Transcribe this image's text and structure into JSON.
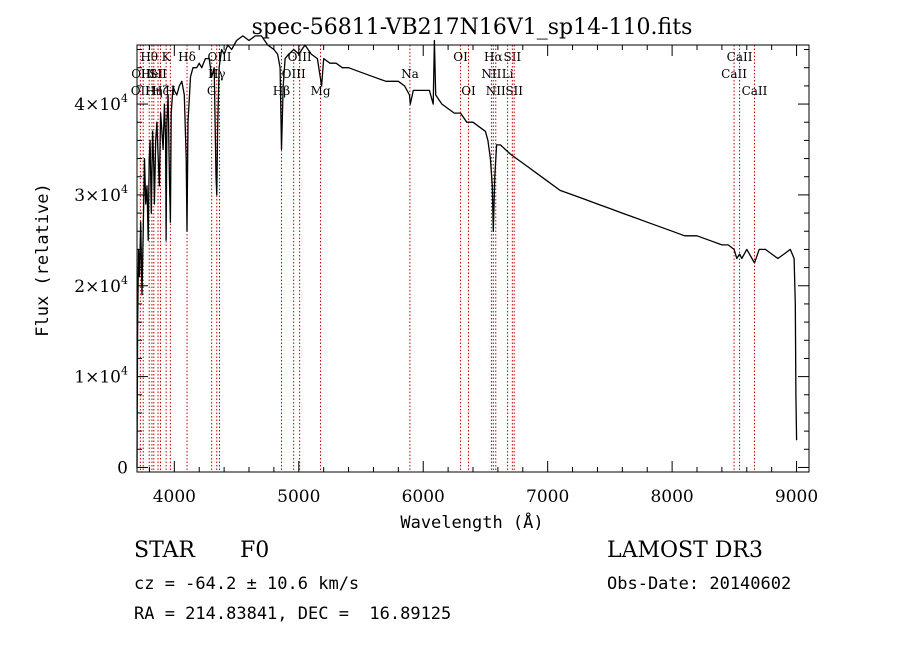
{
  "chart_data": {
    "type": "line",
    "title": "spec-56811-VB217N16V1_sp14-110.fits",
    "xlabel": "Wavelength (Å)",
    "ylabel": "Flux (relative)",
    "xlim": [
      3700,
      9100
    ],
    "ylim": [
      -500,
      46500
    ],
    "x_ticks": [
      4000,
      5000,
      6000,
      7000,
      8000,
      9000
    ],
    "y_ticks": [
      {
        "value": 0,
        "label": "0",
        "exp": ""
      },
      {
        "value": 10000,
        "label": "1×10",
        "exp": "4"
      },
      {
        "value": 20000,
        "label": "2×10",
        "exp": "4"
      },
      {
        "value": 30000,
        "label": "3×10",
        "exp": "4"
      },
      {
        "value": 40000,
        "label": "4×10",
        "exp": "4"
      }
    ],
    "series": [
      {
        "name": "spectrum",
        "x": [
          3700,
          3705,
          3712,
          3720,
          3730,
          3740,
          3750,
          3760,
          3770,
          3780,
          3790,
          3798,
          3805,
          3815,
          3825,
          3835,
          3840,
          3850,
          3860,
          3870,
          3880,
          3890,
          3900,
          3910,
          3920,
          3930,
          3934,
          3940,
          3950,
          3960,
          3968,
          3975,
          3990,
          4000,
          4020,
          4040,
          4060,
          4080,
          4095,
          4102,
          4110,
          4130,
          4150,
          4180,
          4200,
          4220,
          4250,
          4280,
          4300,
          4320,
          4335,
          4341,
          4348,
          4360,
          4380,
          4400,
          4430,
          4460,
          4500,
          4550,
          4600,
          4650,
          4700,
          4750,
          4800,
          4830,
          4850,
          4861,
          4875,
          4890,
          4920,
          4960,
          5000,
          5050,
          5100,
          5150,
          5172,
          5183,
          5200,
          5250,
          5300,
          5350,
          5400,
          5500,
          5600,
          5700,
          5800,
          5850,
          5890,
          5896,
          5920,
          5960,
          6000,
          6050,
          6080,
          6090,
          6100,
          6150,
          6200,
          6250,
          6300,
          6350,
          6400,
          6450,
          6500,
          6520,
          6540,
          6555,
          6563,
          6575,
          6590,
          6620,
          6660,
          6700,
          6750,
          6800,
          6850,
          6900,
          6950,
          7000,
          7100,
          7200,
          7300,
          7400,
          7500,
          7600,
          7700,
          7800,
          7900,
          8000,
          8100,
          8200,
          8300,
          8400,
          8450,
          8498,
          8520,
          8542,
          8560,
          8600,
          8662,
          8700,
          8750,
          8800,
          8850,
          8900,
          8950,
          8980,
          8990,
          8995,
          9000
        ],
        "values": [
          0,
          15000,
          24000,
          21000,
          27000,
          19000,
          26000,
          34000,
          29000,
          31000,
          25000,
          34000,
          36000,
          28000,
          37000,
          33000,
          29000,
          36000,
          38000,
          34000,
          31000,
          39000,
          37000,
          35000,
          40000,
          36000,
          25000,
          38000,
          41000,
          32000,
          27000,
          39000,
          42000,
          41500,
          41000,
          42000,
          42500,
          41000,
          34000,
          26000,
          38000,
          43000,
          44000,
          44000,
          44500,
          44000,
          45000,
          45000,
          43000,
          44000,
          32000,
          30000,
          37000,
          44000,
          46000,
          45500,
          46500,
          46000,
          47000,
          47500,
          47000,
          47500,
          47500,
          46500,
          46000,
          45500,
          44000,
          35000,
          42000,
          45000,
          45500,
          46000,
          45500,
          46500,
          45500,
          45000,
          43000,
          42000,
          45000,
          44500,
          44500,
          44000,
          44000,
          43500,
          43000,
          42500,
          42500,
          42000,
          41000,
          40000,
          41500,
          41500,
          41500,
          41500,
          40000,
          47000,
          41000,
          40000,
          39500,
          39000,
          39000,
          38000,
          38000,
          37500,
          37000,
          36000,
          34000,
          31000,
          26000,
          32000,
          35500,
          35500,
          35000,
          34500,
          34000,
          33500,
          33000,
          32500,
          32000,
          31500,
          30500,
          30000,
          29500,
          29000,
          28500,
          28000,
          27500,
          27000,
          26500,
          26000,
          25500,
          25500,
          25000,
          24500,
          24500,
          24000,
          23000,
          23500,
          23000,
          24000,
          22500,
          24000,
          24000,
          23500,
          23000,
          23500,
          24000,
          23000,
          18000,
          8000,
          3000
        ]
      }
    ],
    "line_markers": [
      {
        "wave": 3727,
        "label": "OII",
        "row": 3
      },
      {
        "wave": 3750,
        "label": "OIII",
        "row": 2
      },
      {
        "wave": 3798,
        "label": "Hθ",
        "row": 1
      },
      {
        "wave": 3820,
        "label": "HeI",
        "row": 2
      },
      {
        "wave": 3835,
        "label": "Hη",
        "row": 3
      },
      {
        "wave": 3869,
        "label": "SII",
        "row": 2
      },
      {
        "wave": 3889,
        "label": "Hζ",
        "row": 3
      },
      {
        "wave": 3934,
        "label": "K",
        "row": 1
      },
      {
        "wave": 3968,
        "label": "H",
        "row": 3
      },
      {
        "wave": 4102,
        "label": "Hδ",
        "row": 1
      },
      {
        "wave": 4300,
        "label": "G",
        "row": 3
      },
      {
        "wave": 4341,
        "label": "Hγ",
        "row": 2
      },
      {
        "wave": 4363,
        "label": "OIII",
        "row": 1
      },
      {
        "wave": 4861,
        "label": "Hβ",
        "row": 3
      },
      {
        "wave": 4959,
        "label": "OIII",
        "row": 2
      },
      {
        "wave": 5007,
        "label": "OIII",
        "row": 1
      },
      {
        "wave": 5175,
        "label": "Mg",
        "row": 3
      },
      {
        "wave": 5893,
        "label": "Na",
        "row": 2
      },
      {
        "wave": 6300,
        "label": "OI",
        "row": 1
      },
      {
        "wave": 6364,
        "label": "OI",
        "row": 3
      },
      {
        "wave": 6548,
        "label": "NII",
        "row": 2
      },
      {
        "wave": 6563,
        "label": "Hα",
        "row": 1
      },
      {
        "wave": 6583,
        "label": "NII",
        "row": 3
      },
      {
        "wave": 6678,
        "label": "Li",
        "row": 2
      },
      {
        "wave": 6716,
        "label": "SII",
        "row": 1
      },
      {
        "wave": 6731,
        "label": "SII",
        "row": 3
      },
      {
        "wave": 8498,
        "label": "CaII",
        "row": 2
      },
      {
        "wave": 8542,
        "label": "CaII",
        "row": 1
      },
      {
        "wave": 8662,
        "label": "CaII",
        "row": 3
      }
    ]
  },
  "info": {
    "obj_class": "STAR",
    "obj_subclass": "F0",
    "cz": "cz = -64.2 ± 10.6 km/s",
    "radec": "RA = 214.83841, DEC =  16.89125",
    "survey": "LAMOST DR3",
    "obs_date": "Obs-Date: 20140602"
  },
  "colors": {
    "spectrum": "#000000",
    "marker_line": "#c00000",
    "axis": "#000000"
  }
}
